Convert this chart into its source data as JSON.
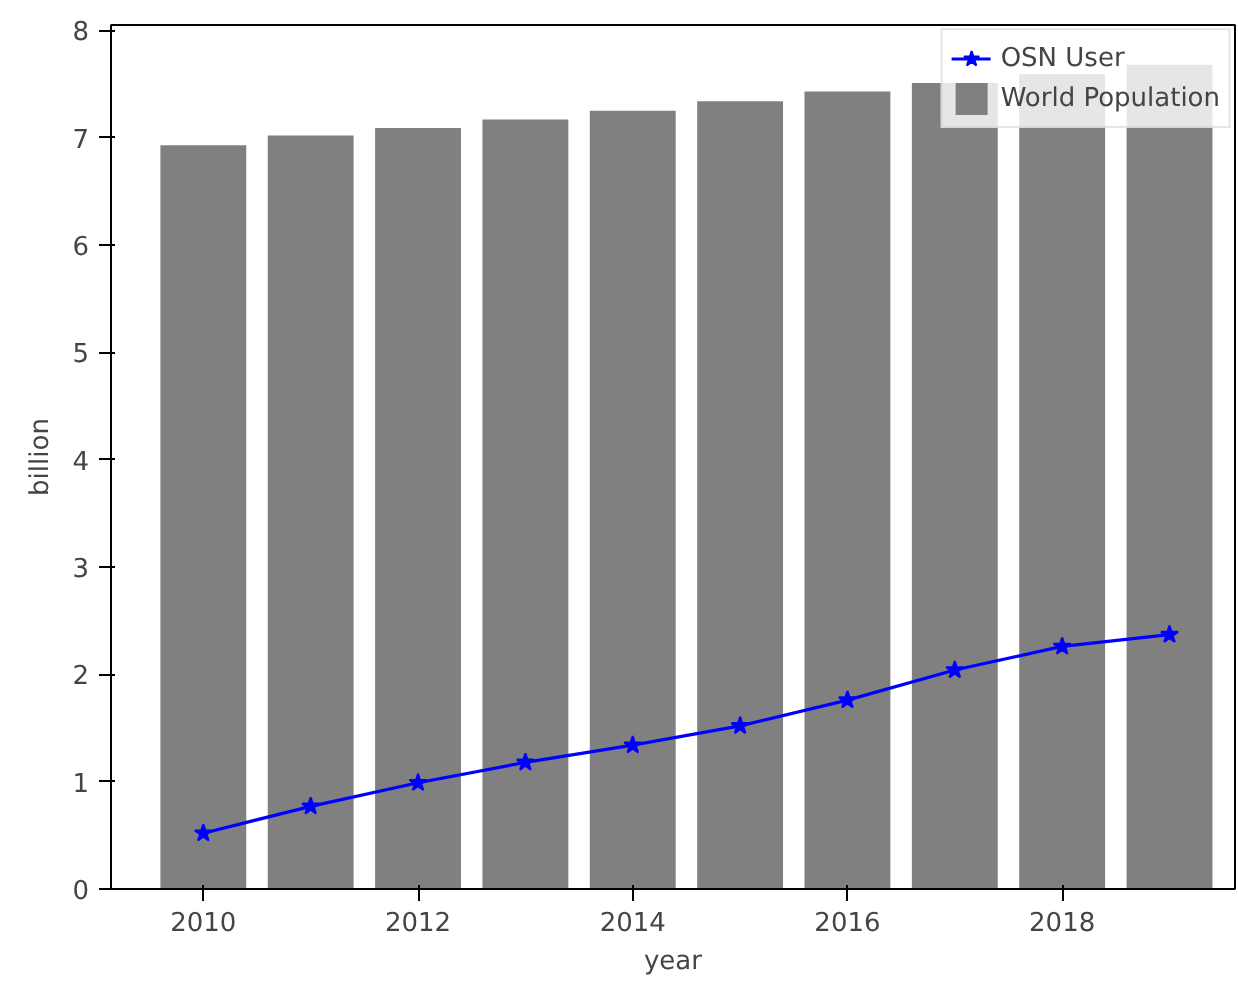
{
  "chart_data": {
    "type": "bar",
    "xlabel": "year",
    "ylabel": "billion",
    "x": [
      2010,
      2011,
      2012,
      2013,
      2014,
      2015,
      2016,
      2017,
      2018,
      2019
    ],
    "series": [
      {
        "name": "OSN User",
        "type": "line",
        "color": "#0000ff",
        "marker": "star",
        "values": [
          0.52,
          0.77,
          0.99,
          1.18,
          1.34,
          1.52,
          1.76,
          2.04,
          2.26,
          2.37
        ]
      },
      {
        "name": "World Population",
        "color": "#808080",
        "values": [
          6.93,
          7.02,
          7.09,
          7.17,
          7.25,
          7.34,
          7.43,
          7.51,
          7.59,
          7.68
        ]
      }
    ],
    "xlim": [
      2009.14,
      2019.61
    ],
    "xticks": [
      2010,
      2012,
      2014,
      2016,
      2018
    ],
    "ylim": [
      0,
      8.05
    ],
    "yticks": [
      0,
      1,
      2,
      3,
      4,
      5,
      6,
      7,
      8
    ],
    "grid": false,
    "legend": "top right"
  }
}
